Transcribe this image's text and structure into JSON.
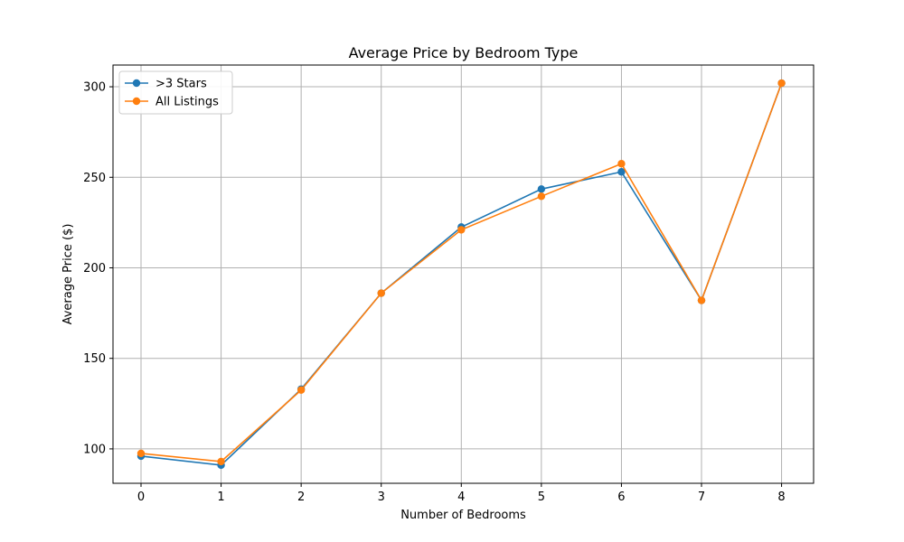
{
  "chart_data": {
    "type": "line",
    "title": "Average Price by Bedroom Type",
    "xlabel": "Number of Bedrooms",
    "ylabel": "Average Price ($)",
    "x": [
      0,
      1,
      2,
      3,
      4,
      5,
      6,
      7,
      8
    ],
    "xlim": [
      -0.35,
      8.4
    ],
    "ylim": [
      81,
      312
    ],
    "xticks": [
      0,
      1,
      2,
      3,
      4,
      5,
      6,
      7,
      8
    ],
    "yticks": [
      100,
      150,
      200,
      250,
      300
    ],
    "grid": true,
    "legend_position": "top-left",
    "series": [
      {
        "name": ">3 Stars",
        "color": "#1f77b4",
        "marker": "circle",
        "values": [
          96,
          91,
          133,
          186,
          222.5,
          243.5,
          253,
          182,
          302
        ]
      },
      {
        "name": "All Listings",
        "color": "#ff7f0e",
        "marker": "circle",
        "values": [
          97.5,
          93,
          132.5,
          186,
          221,
          239.5,
          257.5,
          182,
          302
        ]
      }
    ]
  }
}
